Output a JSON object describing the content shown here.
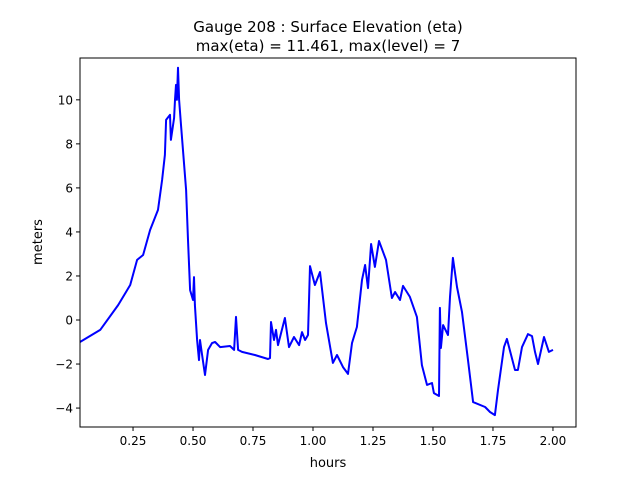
{
  "chart_data": {
    "type": "line",
    "title": [
      "Gauge 208 : Surface Elevation (eta)",
      "max(eta) =  11.461,    max(level) = 7"
    ],
    "xlabel": "hours",
    "ylabel": "meters",
    "xlim": [
      0.029,
      2.096
    ],
    "ylim": [
      -4.86,
      11.9
    ],
    "xticks": [
      0.25,
      0.5,
      0.75,
      1.0,
      1.25,
      1.5,
      1.75,
      2.0
    ],
    "xtick_labels": [
      "0.25",
      "0.50",
      "0.75",
      "1.00",
      "1.25",
      "1.50",
      "1.75",
      "2.00"
    ],
    "yticks": [
      -4,
      -2,
      0,
      2,
      4,
      6,
      8,
      10
    ],
    "ytick_labels": [
      "−4",
      "−2",
      "0",
      "2",
      "4",
      "6",
      "8",
      "10"
    ],
    "grid": false,
    "series": [
      {
        "name": "eta",
        "color": "#0000ff",
        "x": [
          0.029,
          0.113,
          0.188,
          0.238,
          0.267,
          0.292,
          0.321,
          0.354,
          0.371,
          0.383,
          0.388,
          0.404,
          0.408,
          0.421,
          0.425,
          0.429,
          0.433,
          0.4375,
          0.442,
          0.45,
          0.471,
          0.479,
          0.488,
          0.5,
          0.504,
          0.508,
          0.517,
          0.525,
          0.529,
          0.538,
          0.55,
          0.563,
          0.579,
          0.592,
          0.613,
          0.654,
          0.671,
          0.679,
          0.688,
          0.704,
          0.758,
          0.8125,
          0.821,
          0.825,
          0.8375,
          0.846,
          0.854,
          0.883,
          0.9,
          0.921,
          0.942,
          0.954,
          0.967,
          0.979,
          0.9875,
          1.008,
          1.029,
          1.054,
          1.083,
          1.1,
          1.125,
          1.146,
          1.1625,
          1.183,
          1.204,
          1.217,
          1.229,
          1.242,
          1.258,
          1.275,
          1.304,
          1.329,
          1.342,
          1.3625,
          1.375,
          1.404,
          1.433,
          1.454,
          1.475,
          1.496,
          1.504,
          1.525,
          1.529,
          1.533,
          1.542,
          1.5625,
          1.571,
          1.583,
          1.6,
          1.621,
          1.646,
          1.667,
          1.717,
          1.7375,
          1.758,
          1.771,
          1.796,
          1.808,
          1.842,
          1.854,
          1.871,
          1.896,
          1.9125,
          1.925,
          1.9375,
          1.9625,
          1.983,
          2.0
        ],
        "y": [
          -1.0,
          -0.45,
          0.68,
          1.59,
          2.73,
          2.95,
          4.09,
          5.0,
          6.36,
          7.5,
          9.09,
          9.32,
          8.18,
          9.18,
          10.0,
          10.68,
          10.0,
          11.461,
          10.0,
          8.86,
          5.91,
          3.64,
          1.36,
          0.91,
          1.95,
          0.68,
          -0.91,
          -1.82,
          -0.91,
          -1.59,
          -2.5,
          -1.36,
          -1.05,
          -1.0,
          -1.23,
          -1.18,
          -1.36,
          0.14,
          -1.36,
          -1.45,
          -1.59,
          -1.77,
          -1.73,
          -0.09,
          -0.91,
          -0.45,
          -1.14,
          0.09,
          -1.23,
          -0.77,
          -1.14,
          -0.55,
          -0.91,
          -0.68,
          2.45,
          1.59,
          2.18,
          -0.14,
          -1.95,
          -1.59,
          -2.14,
          -2.45,
          -1.05,
          -0.32,
          1.82,
          2.5,
          1.45,
          3.45,
          2.41,
          3.59,
          2.73,
          1.0,
          1.27,
          0.91,
          1.55,
          1.05,
          0.14,
          -2.05,
          -2.95,
          -2.86,
          -3.32,
          -3.45,
          0.55,
          -1.27,
          -0.23,
          -0.68,
          1.05,
          2.82,
          1.5,
          0.36,
          -1.82,
          -3.73,
          -3.95,
          -4.18,
          -4.32,
          -3.18,
          -1.23,
          -0.86,
          -2.27,
          -2.27,
          -1.23,
          -0.64,
          -0.73,
          -1.45,
          -2.0,
          -0.77,
          -1.45,
          -1.36
        ]
      }
    ]
  }
}
